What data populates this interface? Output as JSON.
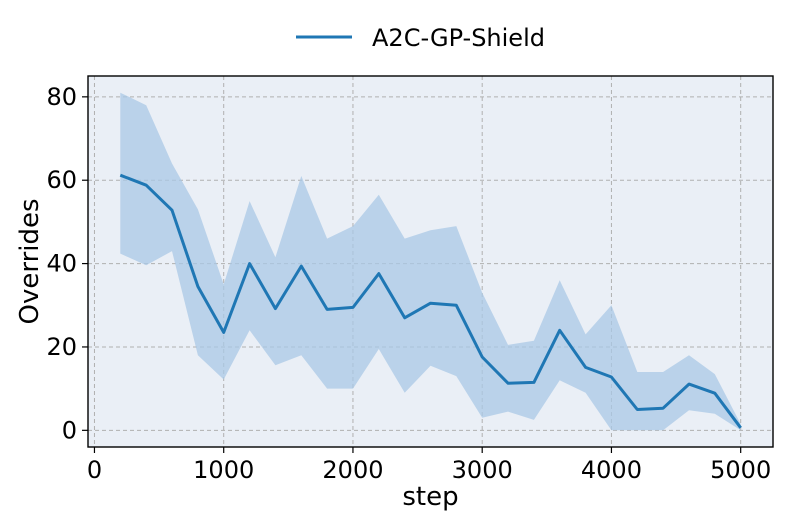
{
  "chart_data": {
    "type": "line",
    "title": "",
    "xlabel": "step",
    "ylabel": "Overrides",
    "xlim": [
      -50,
      5250
    ],
    "ylim": [
      -4,
      85
    ],
    "xticks": [
      0,
      1000,
      2000,
      3000,
      4000,
      5000
    ],
    "yticks": [
      0,
      20,
      40,
      60,
      80
    ],
    "grid": true,
    "legend_position": "top-center",
    "colors": {
      "line": "#1f77b4",
      "band": "#a9c8e6",
      "plot_bg": "#eaeff6"
    },
    "series": [
      {
        "name": "A2C-GP-Shield",
        "x": [
          200,
          400,
          600,
          800,
          1000,
          1200,
          1400,
          1600,
          1800,
          2000,
          2200,
          2400,
          2600,
          2800,
          3000,
          3200,
          3400,
          3600,
          3800,
          4000,
          4200,
          4400,
          4600,
          4800,
          5000
        ],
        "y": [
          61.2,
          58.8,
          52.8,
          34.5,
          23.5,
          40.0,
          29.2,
          39.4,
          29.0,
          29.5,
          37.6,
          27.0,
          30.5,
          30.0,
          17.6,
          11.3,
          11.5,
          24.0,
          15.1,
          12.8,
          5.0,
          5.3,
          11.1,
          8.9,
          0.6
        ],
        "lower": [
          42.4,
          39.6,
          43.0,
          18.0,
          12.2,
          24.0,
          15.6,
          18.0,
          10.0,
          10.0,
          19.5,
          9.0,
          15.5,
          13.0,
          3.0,
          4.5,
          2.5,
          12.0,
          9.0,
          0.0,
          0.0,
          0.0,
          4.8,
          4.0,
          0.0
        ],
        "upper": [
          81.0,
          78.0,
          64.0,
          53.0,
          35.0,
          55.0,
          41.5,
          61.0,
          46.0,
          49.0,
          56.5,
          46.0,
          48.0,
          49.0,
          33.0,
          20.5,
          21.5,
          36.0,
          23.0,
          30.0,
          14.0,
          14.0,
          18.0,
          13.5,
          1.5
        ]
      }
    ]
  }
}
